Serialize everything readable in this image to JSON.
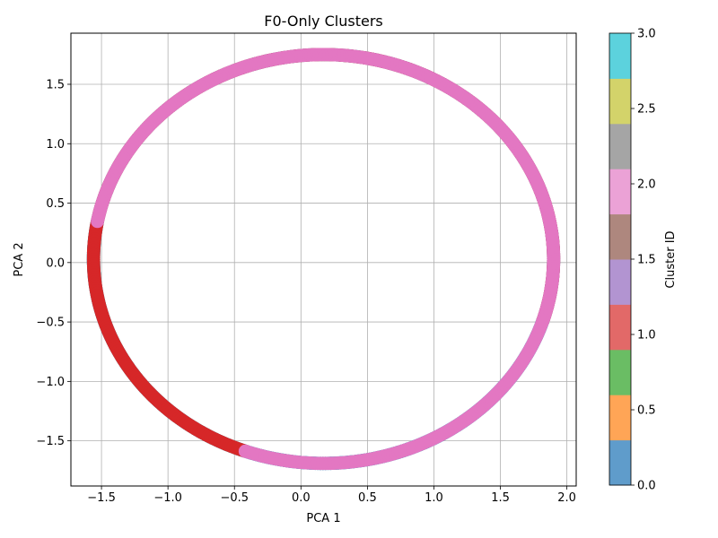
{
  "chart_data": {
    "type": "scatter",
    "title": "F0-Only Clusters",
    "xlabel": "PCA 1",
    "ylabel": "PCA 2",
    "xlim": [
      -1.73,
      2.07
    ],
    "ylim": [
      -1.88,
      1.93
    ],
    "xticks": [
      -1.5,
      -1.0,
      -0.5,
      0.0,
      0.5,
      1.0,
      1.5,
      2.0
    ],
    "xtick_labels": [
      "−1.5",
      "−1.0",
      "−0.5",
      "0.0",
      "0.5",
      "1.0",
      "1.5",
      "2.0"
    ],
    "yticks": [
      -1.5,
      -1.0,
      -0.5,
      0.0,
      0.5,
      1.0,
      1.5
    ],
    "ytick_labels": [
      "−1.5",
      "−1.0",
      "−0.5",
      "0.0",
      "0.5",
      "1.0",
      "1.5"
    ],
    "grid": true,
    "ring": {
      "center_x": 0.17,
      "center_y": 0.03,
      "radius_x": 1.73,
      "radius_y": 1.72,
      "band_width": 0.1
    },
    "clusters": [
      {
        "id": 0,
        "color": "#1f77b4",
        "from_x": -1.54,
        "from_y": 0.35,
        "to_x": 0.48,
        "to_y": 1.73
      },
      {
        "id": 3,
        "color": "#17becf",
        "from_x": 0.48,
        "from_y": 1.73,
        "to_x": 1.83,
        "to_y": -0.5
      },
      {
        "id": 1,
        "color": "#d62728",
        "from_x": 1.83,
        "from_y": -0.5,
        "to_x": -0.42,
        "to_y": -1.6
      },
      {
        "id": 2,
        "color": "#e377c2",
        "from_x": -0.42,
        "from_y": -1.6,
        "to_x": -1.54,
        "to_y": 0.35
      }
    ],
    "colorbar": {
      "label": "Cluster ID",
      "range": [
        0.0,
        3.0
      ],
      "ticks": [
        0.0,
        0.5,
        1.0,
        1.5,
        2.0,
        2.5,
        3.0
      ],
      "tick_labels": [
        "0.0",
        "0.5",
        "1.0",
        "1.5",
        "2.0",
        "2.5",
        "3.0"
      ],
      "colors": [
        "#5f9ccb",
        "#ffa556",
        "#6abd64",
        "#e26968",
        "#b294d1",
        "#ae877e",
        "#eba2d6",
        "#a5a5a5",
        "#d3d36a",
        "#5cd2dd"
      ]
    }
  }
}
